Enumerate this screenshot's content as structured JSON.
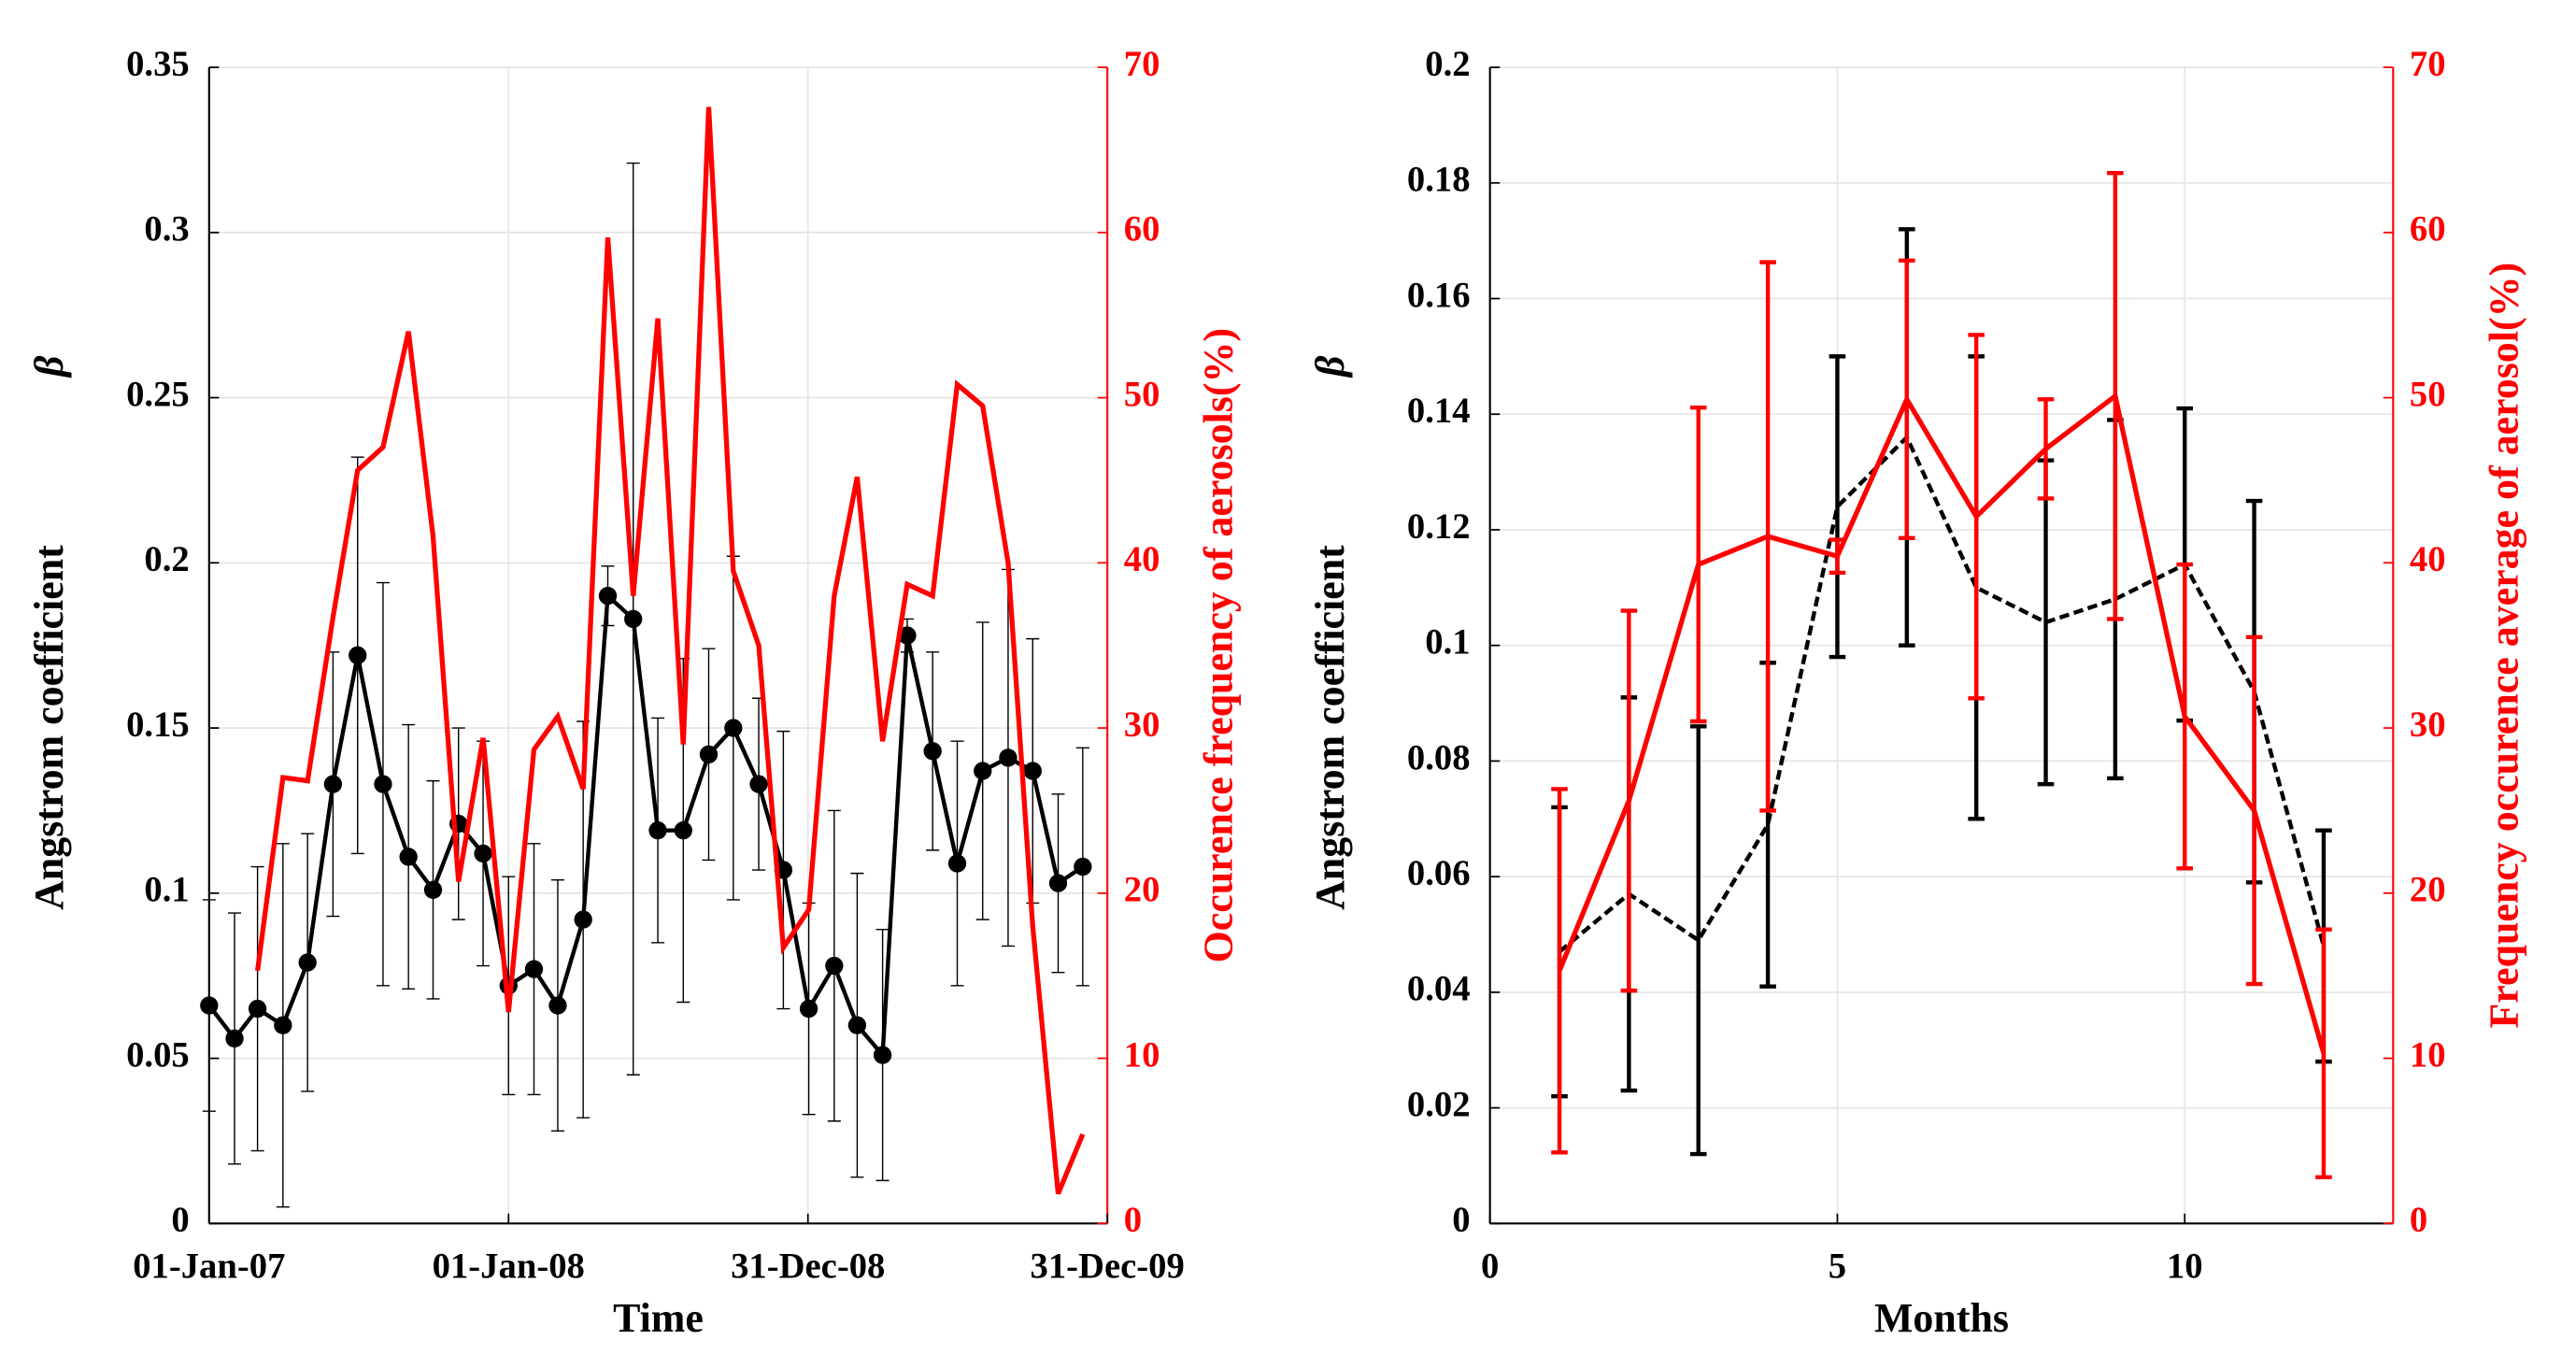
{
  "chart_data": [
    {
      "type": "line",
      "xaxis": "date",
      "x": [
        "2007-01-01",
        "2007-02-01",
        "2007-03-01",
        "2007-04-01",
        "2007-05-01",
        "2007-06-01",
        "2007-07-01",
        "2007-08-01",
        "2007-09-01",
        "2007-10-01",
        "2007-11-01",
        "2007-12-01",
        "2008-01-01",
        "2008-02-01",
        "2008-03-01",
        "2008-04-01",
        "2008-05-01",
        "2008-06-01",
        "2008-07-01",
        "2008-08-01",
        "2008-09-01",
        "2008-10-01",
        "2008-11-01",
        "2008-12-01",
        "2009-01-01",
        "2009-02-01",
        "2009-03-01",
        "2009-04-01",
        "2009-05-01",
        "2009-06-01",
        "2009-07-01",
        "2009-08-01",
        "2009-09-01",
        "2009-10-01",
        "2009-11-01",
        "2009-12-01"
      ],
      "xlabel": "Time",
      "ylabel": "Angstrom coefficient",
      "ysymbol": "β",
      "y2label": "Occurence frequency of aerosols(%)",
      "xlim": [
        "2007-01-01",
        "2009-12-31"
      ],
      "xticks": [
        {
          "value": "2007-01-01",
          "label": "01-Jan-07"
        },
        {
          "value": "2008-01-01",
          "label": "01-Jan-08"
        },
        {
          "value": "2008-12-31",
          "label": "31-Dec-08"
        },
        {
          "value": "2009-12-31",
          "label": "31-Dec-09"
        }
      ],
      "ylim": [
        0,
        0.35
      ],
      "yticks": [
        0,
        0.05,
        0.1,
        0.15,
        0.2,
        0.25,
        0.3,
        0.35
      ],
      "y2lim": [
        0,
        70
      ],
      "y2ticks": [
        0,
        10,
        20,
        30,
        40,
        50,
        60,
        70
      ],
      "grid": true,
      "series": [
        {
          "name": "β",
          "color": "#000000",
          "marker": "o",
          "dashed": false,
          "values": [
            0.066,
            0.056,
            0.065,
            0.06,
            0.079,
            0.133,
            0.172,
            0.133,
            0.111,
            0.101,
            0.121,
            0.112,
            0.072,
            0.077,
            0.066,
            0.092,
            0.19,
            0.183,
            0.119,
            0.119,
            0.142,
            0.15,
            0.133,
            0.107,
            0.065,
            0.078,
            0.06,
            0.051,
            0.178,
            0.143,
            0.109,
            0.137,
            0.141,
            0.137,
            0.103,
            0.108
          ],
          "errors": [
            0.032,
            0.038,
            0.043,
            0.055,
            0.039,
            0.04,
            0.06,
            0.061,
            0.04,
            0.033,
            0.029,
            0.034,
            0.033,
            0.038,
            0.038,
            0.06,
            0.009,
            0.138,
            0.034,
            0.052,
            0.032,
            0.052,
            0.026,
            0.042,
            0.032,
            0.047,
            0.046,
            0.038,
            0.005,
            0.03,
            0.037,
            0.045,
            0.057,
            0.04,
            0.027,
            0.036
          ]
        },
        {
          "name": "Occurence frequency",
          "color": "#ff0000",
          "axis": "y2",
          "dashed": false,
          "values": [
            null,
            null,
            15.3,
            27,
            26.8,
            36.7,
            45.6,
            47,
            54,
            41.6,
            20.7,
            29.4,
            12.8,
            28.7,
            30.7,
            26.3,
            59.7,
            38,
            54.8,
            29,
            67.6,
            39.5,
            35,
            16.7,
            19,
            38,
            45.2,
            29.2,
            38.7,
            38,
            50.8,
            49.5,
            40,
            18,
            1.8,
            5.4
          ]
        }
      ]
    },
    {
      "type": "line",
      "xaxis": "number",
      "x": [
        1,
        2,
        3,
        4,
        5,
        6,
        7,
        8,
        9,
        10,
        11,
        12
      ],
      "xlabel": "Months",
      "ylabel": "Angstrom coefficient",
      "ysymbol": "β",
      "y2label": "Frequency occurence average of aerosol(%)",
      "xlim": [
        0,
        13
      ],
      "xticks": [
        0,
        5,
        10
      ],
      "ylim": [
        0,
        0.2
      ],
      "yticks": [
        0,
        0.02,
        0.04,
        0.06,
        0.08,
        0.1,
        0.12,
        0.14,
        0.16,
        0.18,
        0.2
      ],
      "y2lim": [
        0,
        70
      ],
      "y2ticks": [
        0,
        10,
        20,
        30,
        40,
        50,
        60,
        70
      ],
      "grid": true,
      "series": [
        {
          "name": "β",
          "color": "#000000",
          "dashed": true,
          "values": [
            0.047,
            0.057,
            0.049,
            0.069,
            0.124,
            0.136,
            0.11,
            0.104,
            0.108,
            0.114,
            0.092,
            0.048
          ],
          "errors": [
            0.025,
            0.034,
            0.037,
            0.028,
            0.026,
            0.036,
            0.04,
            0.028,
            0.031,
            0.027,
            0.033,
            0.02
          ]
        },
        {
          "name": "Frequency",
          "color": "#ff0000",
          "axis": "y2",
          "dashed": false,
          "values": [
            15.3,
            25.6,
            39.9,
            41.6,
            40.4,
            49.9,
            42.8,
            46.9,
            50.1,
            30.7,
            25,
            10.3
          ],
          "errors": [
            11,
            11.5,
            9.5,
            16.6,
            1,
            8.4,
            11,
            3,
            13.5,
            9.2,
            10.5,
            7.5
          ]
        }
      ]
    }
  ]
}
